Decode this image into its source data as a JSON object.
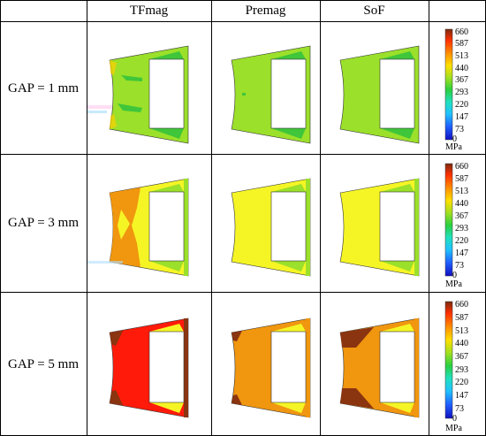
{
  "table": {
    "columns": [
      "",
      "TFmag",
      "Premag",
      "SoF",
      ""
    ],
    "rows": [
      {
        "label": "GAP = 1 mm",
        "colorbar": {
          "ticks": [
            "660",
            "587",
            "513",
            "440",
            "367",
            "293",
            "220",
            "147",
            "73",
            "0"
          ],
          "unit": "MPa"
        }
      },
      {
        "label": "GAP = 3 mm",
        "colorbar": {
          "ticks": [
            "660",
            "587",
            "513",
            "440",
            "367",
            "293",
            "220",
            "147",
            "73",
            "0"
          ],
          "unit": "MPa"
        }
      },
      {
        "label": "GAP = 5 mm",
        "colorbar": {
          "ticks": [
            "660",
            "587",
            "513",
            "440",
            "367",
            "293",
            "220",
            "147",
            "73",
            "0"
          ],
          "unit": "MPa"
        }
      }
    ]
  },
  "colors": {
    "scale": [
      "#7a2a10",
      "#ff2a00",
      "#ff8c00",
      "#ffd000",
      "#ffff33",
      "#a0e020",
      "#2ad020",
      "#20e0a0",
      "#20e0ff",
      "#20a0ff",
      "#2050ff",
      "#1010d0"
    ],
    "green": "#9be02a",
    "yellow": "#f5f526",
    "orange": "#f0960f",
    "red": "#ff1a0a",
    "brown": "#8a3410",
    "darkgreen": "#3fc63a"
  }
}
